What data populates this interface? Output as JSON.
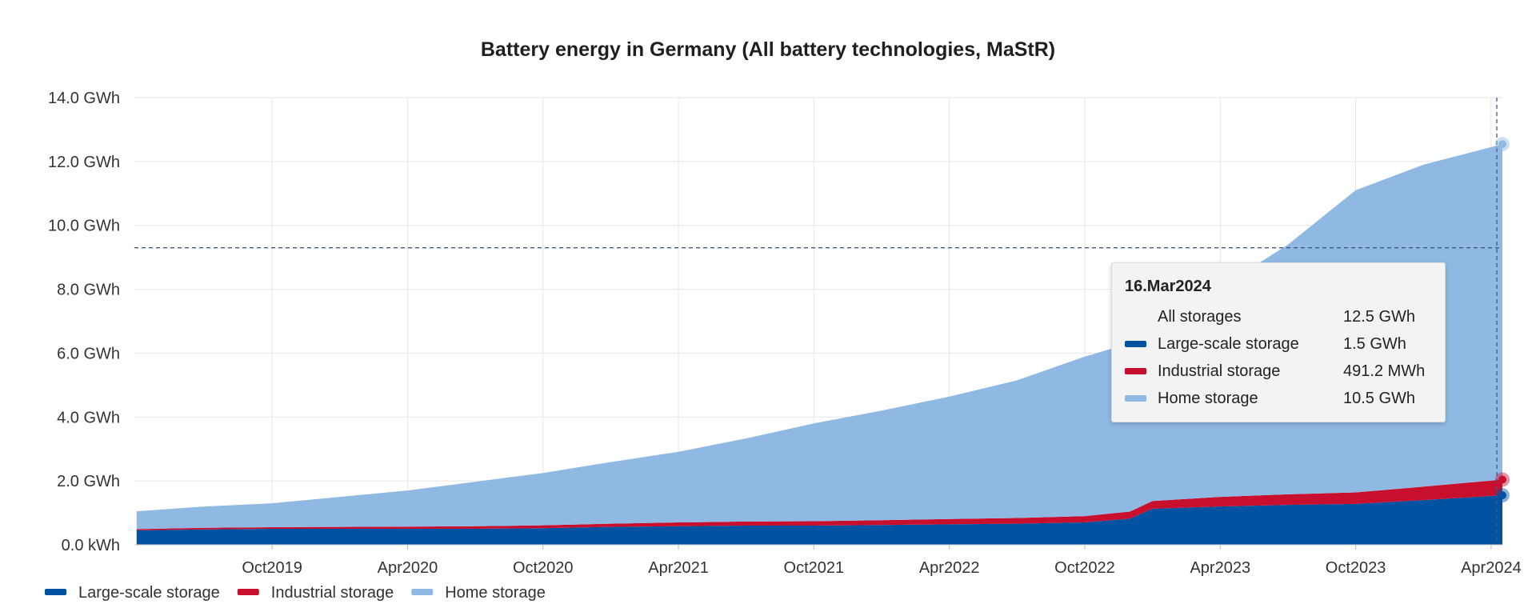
{
  "chart_data": {
    "type": "area",
    "stacked": true,
    "title": "Battery energy in Germany (All battery technologies, MaStR)",
    "x_ticks": [
      "Oct2019",
      "Apr2020",
      "Oct2020",
      "Apr2021",
      "Oct2021",
      "Apr2022",
      "Oct2022",
      "Apr2023",
      "Oct2023",
      "Apr2024"
    ],
    "y_ticks": [
      "0.0 kWh",
      "2.0 GWh",
      "4.0 GWh",
      "6.0 GWh",
      "8.0 GWh",
      "10.0 GWh",
      "12.0 GWh",
      "14.0 GWh"
    ],
    "ylim": [
      0,
      14
    ],
    "yunit": "GWh",
    "x_range_months": [
      -6.1,
      54.5
    ],
    "x_note": "x values are months since Oct 2019 (0 = Oct2019)",
    "x": [
      -6,
      -3,
      0,
      3,
      6,
      9,
      12,
      15,
      18,
      21,
      24,
      27,
      30,
      33,
      36,
      38,
      39,
      42,
      45,
      48,
      51,
      54.5
    ],
    "series": [
      {
        "name": "Large-scale storage",
        "color": "#0152a1",
        "values": [
          0.45,
          0.48,
          0.5,
          0.5,
          0.5,
          0.5,
          0.52,
          0.56,
          0.58,
          0.6,
          0.6,
          0.62,
          0.64,
          0.66,
          0.7,
          0.82,
          1.13,
          1.2,
          1.25,
          1.28,
          1.4,
          1.55
        ]
      },
      {
        "name": "Industrial storage",
        "color": "#c8102e",
        "values": [
          0.04,
          0.05,
          0.05,
          0.06,
          0.07,
          0.08,
          0.09,
          0.1,
          0.12,
          0.13,
          0.14,
          0.15,
          0.17,
          0.18,
          0.2,
          0.22,
          0.24,
          0.3,
          0.33,
          0.36,
          0.42,
          0.4912
        ]
      },
      {
        "name": "Home storage",
        "color": "#8fb9e3",
        "values": [
          0.56,
          0.67,
          0.75,
          0.94,
          1.13,
          1.39,
          1.64,
          1.93,
          2.21,
          2.6,
          3.06,
          3.43,
          3.83,
          4.31,
          4.99,
          5.27,
          5.63,
          6.55,
          7.82,
          9.46,
          10.08,
          10.5
        ]
      }
    ],
    "reference_line_value": 9.3,
    "legend": [
      "Large-scale storage",
      "Industrial storage",
      "Home storage"
    ],
    "legend_position": "bottom-left",
    "grid": true
  },
  "tooltip": {
    "date": "16.Mar2024",
    "rows": [
      {
        "label": "All storages",
        "value": "12.5 GWh",
        "color": ""
      },
      {
        "label": "Large-scale storage",
        "value": "1.5 GWh",
        "color": "#0152a1"
      },
      {
        "label": "Industrial storage",
        "value": "491.2 MWh",
        "color": "#c8102e"
      },
      {
        "label": "Home storage",
        "value": "10.5 GWh",
        "color": "#8fb9e3"
      }
    ]
  }
}
